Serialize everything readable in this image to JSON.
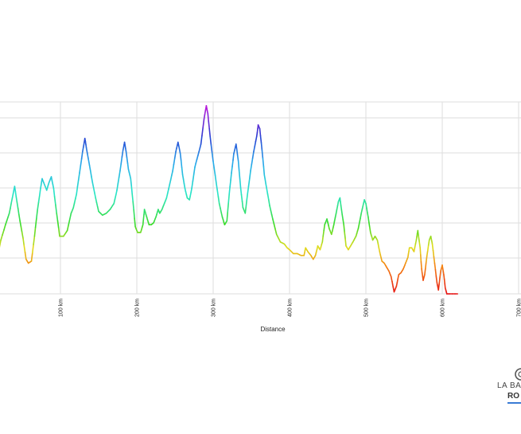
{
  "chart_data": {
    "type": "area",
    "title": "",
    "xlabel": "Distance",
    "ylabel": "",
    "xlim": [
      -15,
      720
    ],
    "x_ticks": [
      100,
      200,
      300,
      400,
      500,
      600,
      700
    ],
    "x_tick_labels": [
      "100 km",
      "200 km",
      "300 km",
      "400 km",
      "500 km",
      "600 km",
      "700 km"
    ],
    "y_grid": true,
    "x_grid": true,
    "colormap": "elevation gradient: red (low) → orange → yellow → green → cyan → blue → magenta (high)",
    "series": [
      {
        "values_note": "relative elevation (0 = lowest, 100 = highest), read from profile shape",
        "points": [
          [
            -15,
            29
          ],
          [
            -8,
            33
          ],
          [
            -3,
            37
          ],
          [
            0,
            39
          ],
          [
            3,
            30
          ],
          [
            6,
            23
          ],
          [
            9,
            19
          ],
          [
            12,
            16
          ],
          [
            15,
            18
          ],
          [
            18,
            20
          ],
          [
            22,
            28
          ],
          [
            28,
            36
          ],
          [
            33,
            42
          ],
          [
            37,
            50
          ],
          [
            40,
            56
          ],
          [
            43,
            48
          ],
          [
            47,
            38
          ],
          [
            51,
            29
          ],
          [
            55,
            18
          ],
          [
            58,
            16
          ],
          [
            62,
            17
          ],
          [
            66,
            30
          ],
          [
            70,
            44
          ],
          [
            74,
            55
          ],
          [
            76,
            60
          ],
          [
            79,
            57
          ],
          [
            82,
            54
          ],
          [
            85,
            58
          ],
          [
            88,
            61
          ],
          [
            91,
            55
          ],
          [
            95,
            42
          ],
          [
            99,
            30
          ],
          [
            104,
            30
          ],
          [
            109,
            33
          ],
          [
            114,
            42
          ],
          [
            117,
            45
          ],
          [
            121,
            52
          ],
          [
            125,
            63
          ],
          [
            129,
            74
          ],
          [
            132,
            81
          ],
          [
            134,
            76
          ],
          [
            138,
            67
          ],
          [
            142,
            58
          ],
          [
            146,
            50
          ],
          [
            150,
            43
          ],
          [
            155,
            41
          ],
          [
            160,
            42
          ],
          [
            165,
            44
          ],
          [
            170,
            47
          ],
          [
            174,
            54
          ],
          [
            178,
            64
          ],
          [
            182,
            75
          ],
          [
            184,
            79
          ],
          [
            186,
            74
          ],
          [
            189,
            65
          ],
          [
            192,
            60
          ],
          [
            195,
            48
          ],
          [
            198,
            35
          ],
          [
            201,
            32
          ],
          [
            205,
            32
          ],
          [
            208,
            36
          ],
          [
            210,
            44
          ],
          [
            213,
            40
          ],
          [
            216,
            36
          ],
          [
            219,
            36
          ],
          [
            222,
            37
          ],
          [
            225,
            40
          ],
          [
            228,
            44
          ],
          [
            230,
            42
          ],
          [
            233,
            44
          ],
          [
            236,
            47
          ],
          [
            239,
            50
          ],
          [
            243,
            57
          ],
          [
            247,
            64
          ],
          [
            251,
            74
          ],
          [
            254,
            79
          ],
          [
            257,
            73
          ],
          [
            260,
            62
          ],
          [
            263,
            55
          ],
          [
            266,
            50
          ],
          [
            269,
            49
          ],
          [
            272,
            55
          ],
          [
            276,
            66
          ],
          [
            280,
            72
          ],
          [
            284,
            78
          ],
          [
            288,
            91
          ],
          [
            291,
            98
          ],
          [
            293,
            94
          ],
          [
            296,
            82
          ],
          [
            300,
            69
          ],
          [
            304,
            58
          ],
          [
            308,
            47
          ],
          [
            312,
            40
          ],
          [
            315,
            36
          ],
          [
            318,
            38
          ],
          [
            321,
            52
          ],
          [
            324,
            63
          ],
          [
            327,
            73
          ],
          [
            330,
            78
          ],
          [
            333,
            69
          ],
          [
            336,
            55
          ],
          [
            339,
            45
          ],
          [
            342,
            42
          ],
          [
            345,
            52
          ],
          [
            349,
            64
          ],
          [
            353,
            74
          ],
          [
            357,
            82
          ],
          [
            359,
            88
          ],
          [
            361,
            86
          ],
          [
            364,
            75
          ],
          [
            367,
            62
          ],
          [
            370,
            55
          ],
          [
            374,
            46
          ],
          [
            378,
            39
          ],
          [
            383,
            31
          ],
          [
            388,
            27
          ],
          [
            393,
            26
          ],
          [
            397,
            24
          ],
          [
            400,
            23
          ],
          [
            405,
            21
          ],
          [
            410,
            21
          ],
          [
            415,
            20
          ],
          [
            419,
            20
          ],
          [
            421,
            24
          ],
          [
            424,
            22
          ],
          [
            428,
            20
          ],
          [
            431,
            18
          ],
          [
            434,
            20
          ],
          [
            437,
            25
          ],
          [
            440,
            23
          ],
          [
            443,
            27
          ],
          [
            446,
            36
          ],
          [
            449,
            39
          ],
          [
            452,
            34
          ],
          [
            455,
            31
          ],
          [
            458,
            36
          ],
          [
            461,
            42
          ],
          [
            464,
            48
          ],
          [
            466,
            50
          ],
          [
            468,
            44
          ],
          [
            471,
            36
          ],
          [
            474,
            25
          ],
          [
            477,
            23
          ],
          [
            480,
            25
          ],
          [
            483,
            27
          ],
          [
            487,
            30
          ],
          [
            490,
            34
          ],
          [
            494,
            42
          ],
          [
            498,
            49
          ],
          [
            500,
            47
          ],
          [
            503,
            40
          ],
          [
            506,
            32
          ],
          [
            509,
            28
          ],
          [
            512,
            30
          ],
          [
            515,
            28
          ],
          [
            518,
            22
          ],
          [
            521,
            17
          ],
          [
            524,
            16
          ],
          [
            527,
            14
          ],
          [
            530,
            12
          ],
          [
            533,
            9
          ],
          [
            535,
            5
          ],
          [
            537,
            1
          ],
          [
            540,
            4
          ],
          [
            543,
            10
          ],
          [
            546,
            11
          ],
          [
            549,
            13
          ],
          [
            552,
            16
          ],
          [
            555,
            19
          ],
          [
            557,
            24
          ],
          [
            560,
            24
          ],
          [
            563,
            22
          ],
          [
            566,
            28
          ],
          [
            568,
            33
          ],
          [
            571,
            24
          ],
          [
            573,
            13
          ],
          [
            575,
            7
          ],
          [
            577,
            10
          ],
          [
            580,
            20
          ],
          [
            583,
            28
          ],
          [
            585,
            30
          ],
          [
            587,
            26
          ],
          [
            590,
            16
          ],
          [
            593,
            6
          ],
          [
            595,
            2
          ],
          [
            598,
            12
          ],
          [
            600,
            15
          ],
          [
            602,
            10
          ],
          [
            604,
            3
          ],
          [
            606,
            0
          ],
          [
            610,
            0
          ],
          [
            620,
            0
          ]
        ]
      }
    ]
  },
  "logo": {
    "line1": "LA BA",
    "line2": "RO"
  }
}
